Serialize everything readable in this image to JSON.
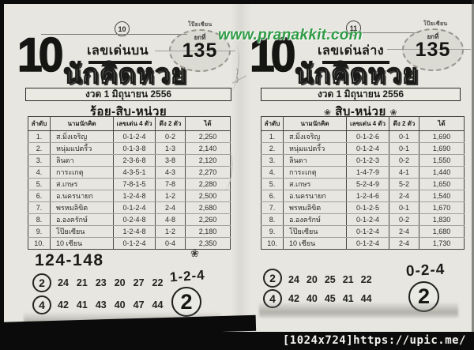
{
  "watermark": {
    "text": "www.pranakkit.com",
    "color": "#2f9c45"
  },
  "frame": {
    "caption": "[1024x724]https://upic.me/"
  },
  "pages": {
    "left": {
      "page_no": "10",
      "corner": "โป๊ยเซียน",
      "big_number": "10",
      "edition": "เลขเด่นบน",
      "brand": "นักคิดหวย",
      "stamp_prefix": "ยกที่",
      "stamp_no": "135",
      "draw_date": "งวด 1 มิถุนายน 2556",
      "section": "ร้อย-สิบ-หน่วย",
      "flower": "❀",
      "table": {
        "headers": [
          "ลำดับ",
          "นามนักคิด",
          "เลขเด่น 4 ตัว",
          "ดึง 2 ตัว",
          "ได้"
        ],
        "rows": [
          [
            "1.",
            "ส.มิ่งเจริญ",
            "0-1-2-4",
            "0-2",
            "2,250"
          ],
          [
            "2.",
            "หนุ่มแปดริ้ว",
            "0-1-3-8",
            "1-3",
            "2,140"
          ],
          [
            "3.",
            "ลินดา",
            "2-3-6-8",
            "3-8",
            "2,120"
          ],
          [
            "4.",
            "การะเกตุ",
            "4-3-5-1",
            "4-3",
            "2,270"
          ],
          [
            "5.",
            "ส.เกษร",
            "7-8-1-5",
            "7-8",
            "2,280"
          ],
          [
            "6.",
            "อ.นครนายก",
            "1-2-4-8",
            "1-2",
            "2,500"
          ],
          [
            "7.",
            "พรหมลิขิต",
            "0-1-2-4",
            "2-4",
            "2,680"
          ],
          [
            "8.",
            "อ.องครักษ์",
            "0-2-4-8",
            "4-8",
            "2,260"
          ],
          [
            "9.",
            "โป๊ยเซียน",
            "1-2-4-8",
            "1-2",
            "2,180"
          ],
          [
            "10.",
            "10 เซียน",
            "0-1-2-4",
            "0-4",
            "2,350"
          ]
        ]
      },
      "footer": {
        "range": "124-148",
        "circle2": "2",
        "nums2": [
          "24",
          "21",
          "23",
          "20",
          "27",
          "22"
        ],
        "circle4": "4",
        "nums4": [
          "42",
          "41",
          "43",
          "40",
          "47",
          "44"
        ],
        "pick": "1-2-4",
        "final": "2"
      }
    },
    "right": {
      "page_no": "11",
      "corner": "โป๊ยเซียน",
      "big_number": "10",
      "edition": "เลขเด่นล่าง",
      "brand": "นักคิดหวย",
      "stamp_prefix": "ยกที่",
      "stamp_no": "135",
      "draw_date": "งวด 1 มิถุนายน 2556",
      "section": "สิบ-หน่วย",
      "flower": "❀",
      "table": {
        "headers": [
          "ลำดับ",
          "นามนักคิด",
          "เลขเด่น 4 ตัว",
          "ดึง 2 ตัว",
          "ได้"
        ],
        "rows": [
          [
            "1.",
            "ส.มิ่งเจริญ",
            "0-1-2-6",
            "0-1",
            "1,690"
          ],
          [
            "2.",
            "หนุ่มแปดริ้ว",
            "0-1-2-4",
            "0-1",
            "1,690"
          ],
          [
            "3.",
            "ลินดา",
            "0-1-2-3",
            "0-2",
            "1,550"
          ],
          [
            "4.",
            "การะเกตุ",
            "1-4-7-9",
            "4-1",
            "1,440"
          ],
          [
            "5.",
            "ส.เกษร",
            "5-2-4-9",
            "5-2",
            "1,650"
          ],
          [
            "6.",
            "อ.นครนายก",
            "1-2-4-6",
            "2-4",
            "1,540"
          ],
          [
            "7.",
            "พรหมลิขิต",
            "0-1-2-5",
            "0-1",
            "1,670"
          ],
          [
            "8.",
            "อ.องครักษ์",
            "0-1-2-4",
            "0-2",
            "1,830"
          ],
          [
            "9.",
            "โป๊ยเซียน",
            "0-1-2-4",
            "2-4",
            "1,680"
          ],
          [
            "10.",
            "10 เซียน",
            "0-1-2-4",
            "2-4",
            "1,730"
          ]
        ]
      },
      "footer": {
        "circle2": "2",
        "nums2": [
          "24",
          "20",
          "25",
          "21",
          "22"
        ],
        "circle4": "4",
        "nums4": [
          "42",
          "40",
          "45",
          "41",
          "44"
        ],
        "pick": "0-2-4",
        "final": "2"
      }
    }
  }
}
